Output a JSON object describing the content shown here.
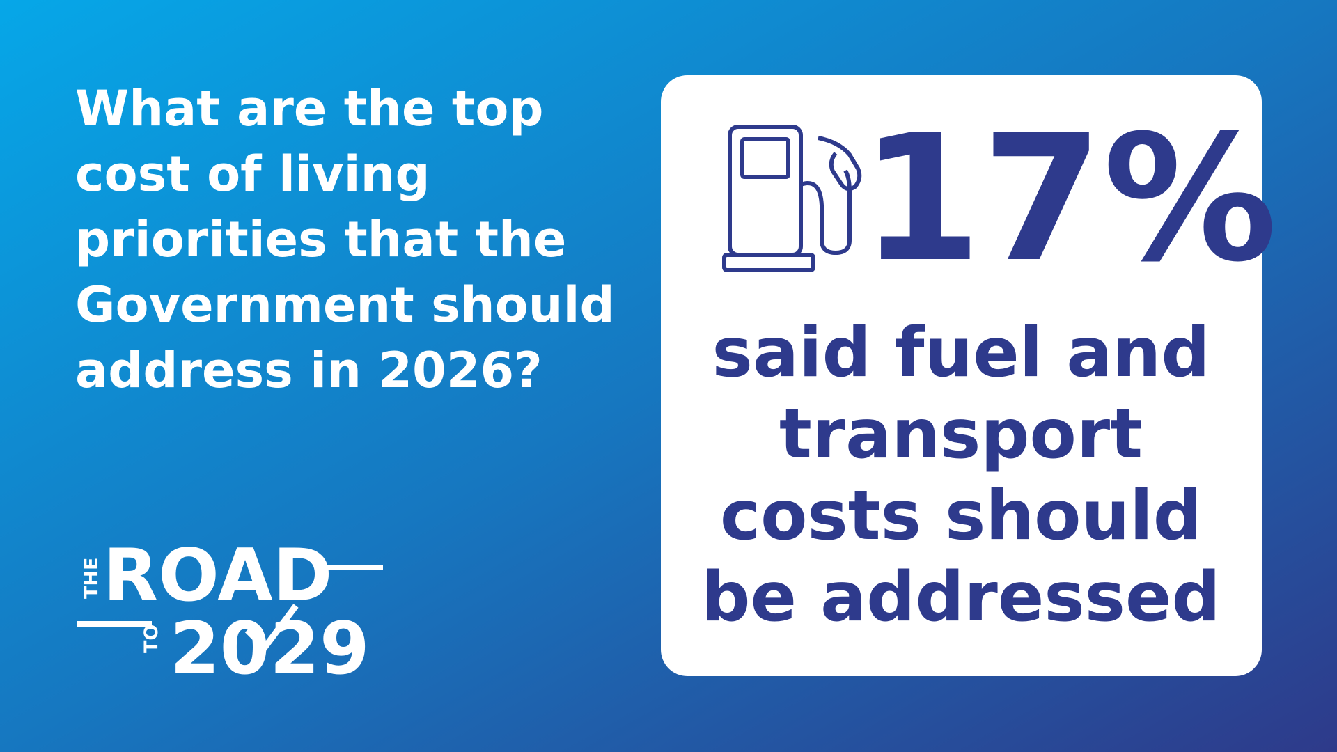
{
  "question": {
    "lines": [
      "What are the top",
      "cost of living",
      "priorities that the",
      "Government should",
      "address in 2026?"
    ]
  },
  "logo": {
    "the": "THE",
    "road": "ROAD",
    "to": "TO",
    "year": "2029"
  },
  "stat": {
    "figure": "17%",
    "lines": [
      "said fuel and",
      "transport",
      "costs should",
      "be addressed"
    ]
  }
}
